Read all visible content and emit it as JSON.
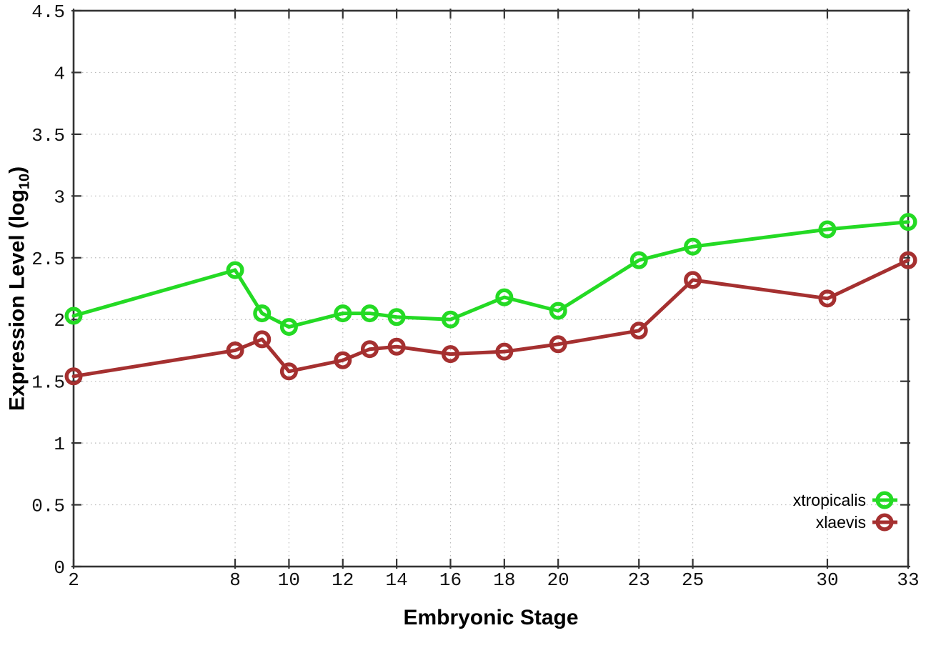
{
  "chart_data": {
    "type": "line",
    "title": "",
    "xlabel": "Embryonic Stage",
    "ylabel": "Expression Level (log10)",
    "ylabel_parts": {
      "prefix": "Expression Level (log",
      "sub": "10",
      "suffix": ")"
    },
    "x": [
      2,
      8,
      9,
      10,
      12,
      13,
      14,
      16,
      18,
      20,
      23,
      25,
      30,
      33
    ],
    "series": [
      {
        "name": "xtropicalis",
        "color": "#24da24",
        "values": [
          2.03,
          2.4,
          2.05,
          1.94,
          2.05,
          2.05,
          2.02,
          2.0,
          2.18,
          2.07,
          2.48,
          2.59,
          2.73,
          2.79
        ]
      },
      {
        "name": "xlaevis",
        "color": "#a53030",
        "values": [
          1.54,
          1.75,
          1.84,
          1.58,
          1.67,
          1.76,
          1.78,
          1.72,
          1.74,
          1.8,
          1.91,
          2.32,
          2.17,
          2.48
        ]
      }
    ],
    "xlim": [
      2,
      33
    ],
    "ylim": [
      0,
      4.5
    ],
    "x_tick_values": [
      2,
      8,
      10,
      12,
      14,
      16,
      18,
      20,
      23,
      25,
      30,
      33
    ],
    "x_tick_labels": [
      "2",
      "8",
      "10",
      "12",
      "14",
      "16",
      "18",
      "20",
      "23",
      "25",
      "30",
      "33"
    ],
    "y_tick_values": [
      0,
      0.5,
      1,
      1.5,
      2,
      2.5,
      3,
      3.5,
      4,
      4.5
    ],
    "y_tick_labels": [
      "0",
      "0.5",
      "1",
      "1.5",
      "2",
      "2.5",
      "3",
      "3.5",
      "4",
      "4.5"
    ],
    "grid": "dotted",
    "legend_position": "inside-bottom-right",
    "marker": "open-circle"
  },
  "styles": {
    "background": "#ffffff",
    "axis_color": "#333333",
    "grid_color": "#b9b9b9",
    "tick_text_color": "#111111",
    "green_series": "#24da24",
    "red_series": "#a53030"
  }
}
